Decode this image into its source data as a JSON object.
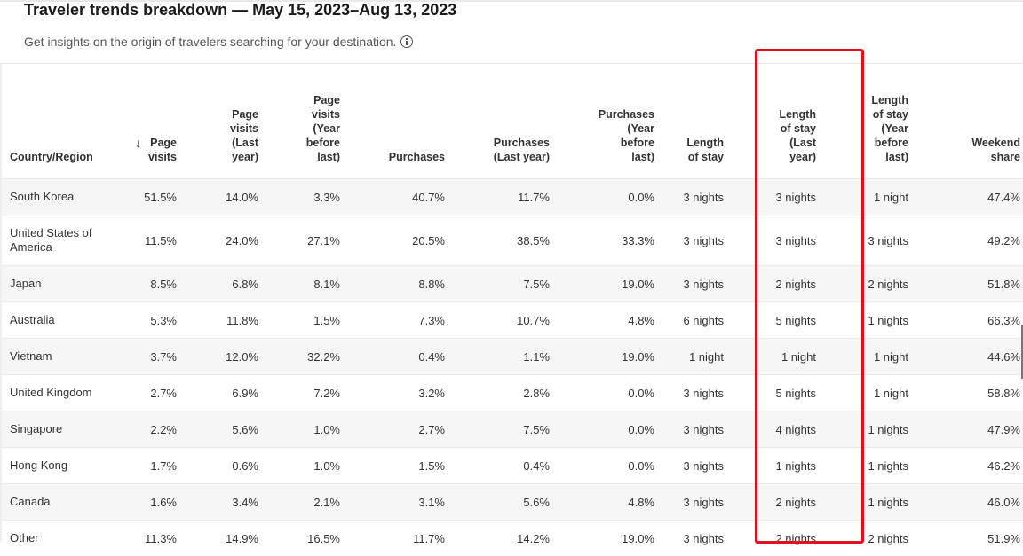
{
  "title": "Traveler trends breakdown — May 15, 2023–Aug 13, 2023",
  "subtitle": "Get insights on the origin of travelers searching for your destination.",
  "icons": {
    "info": "info-icon",
    "sort": "arrow-down-icon"
  },
  "colors": {
    "highlight": "#e01020",
    "row_shade": "#f6f6f6"
  },
  "table": {
    "headers": {
      "country": "Country/Region",
      "page_visits": "Page visits",
      "page_visits_last": "Page visits (Last year)",
      "page_visits_ybl": "Page visits (Year before last)",
      "purchases": "Purchases",
      "purchases_last": "Purchases (Last year)",
      "purchases_ybl": "Purchases (Year before last)",
      "stay": "Length of stay",
      "stay_last": "Length of stay (Last year)",
      "stay_ybl": "Length of stay (Year before last)",
      "weekend": "Weekend share"
    },
    "sort_column": "Page visits",
    "highlighted_column": "Length of stay (Last year)",
    "rows": [
      {
        "country": "South Korea",
        "page_visits": "51.5%",
        "page_visits_last": "14.0%",
        "page_visits_ybl": "3.3%",
        "purchases": "40.7%",
        "purchases_last": "11.7%",
        "purchases_ybl": "0.0%",
        "stay": "3 nights",
        "stay_last": "3 nights",
        "stay_ybl": "1 night",
        "weekend": "47.4%"
      },
      {
        "country": "United States of America",
        "page_visits": "11.5%",
        "page_visits_last": "24.0%",
        "page_visits_ybl": "27.1%",
        "purchases": "20.5%",
        "purchases_last": "38.5%",
        "purchases_ybl": "33.3%",
        "stay": "3 nights",
        "stay_last": "3 nights",
        "stay_ybl": "3 nights",
        "weekend": "49.2%"
      },
      {
        "country": "Japan",
        "page_visits": "8.5%",
        "page_visits_last": "6.8%",
        "page_visits_ybl": "8.1%",
        "purchases": "8.8%",
        "purchases_last": "7.5%",
        "purchases_ybl": "19.0%",
        "stay": "3 nights",
        "stay_last": "2 nights",
        "stay_ybl": "2 nights",
        "weekend": "51.8%"
      },
      {
        "country": "Australia",
        "page_visits": "5.3%",
        "page_visits_last": "11.8%",
        "page_visits_ybl": "1.5%",
        "purchases": "7.3%",
        "purchases_last": "10.7%",
        "purchases_ybl": "4.8%",
        "stay": "6 nights",
        "stay_last": "5 nights",
        "stay_ybl": "1 nights",
        "weekend": "66.3%"
      },
      {
        "country": "Vietnam",
        "page_visits": "3.7%",
        "page_visits_last": "12.0%",
        "page_visits_ybl": "32.2%",
        "purchases": "0.4%",
        "purchases_last": "1.1%",
        "purchases_ybl": "19.0%",
        "stay": "1 night",
        "stay_last": "1 night",
        "stay_ybl": "1 night",
        "weekend": "44.6%"
      },
      {
        "country": "United Kingdom",
        "page_visits": "2.7%",
        "page_visits_last": "6.9%",
        "page_visits_ybl": "7.2%",
        "purchases": "3.2%",
        "purchases_last": "2.8%",
        "purchases_ybl": "0.0%",
        "stay": "3 nights",
        "stay_last": "5 nights",
        "stay_ybl": "1 night",
        "weekend": "58.8%"
      },
      {
        "country": "Singapore",
        "page_visits": "2.2%",
        "page_visits_last": "5.6%",
        "page_visits_ybl": "1.0%",
        "purchases": "2.7%",
        "purchases_last": "7.5%",
        "purchases_ybl": "0.0%",
        "stay": "3 nights",
        "stay_last": "4 nights",
        "stay_ybl": "1 nights",
        "weekend": "47.9%"
      },
      {
        "country": "Hong Kong",
        "page_visits": "1.7%",
        "page_visits_last": "0.6%",
        "page_visits_ybl": "1.0%",
        "purchases": "1.5%",
        "purchases_last": "0.4%",
        "purchases_ybl": "0.0%",
        "stay": "3 nights",
        "stay_last": "1 nights",
        "stay_ybl": "1 nights",
        "weekend": "46.2%"
      },
      {
        "country": "Canada",
        "page_visits": "1.6%",
        "page_visits_last": "3.4%",
        "page_visits_ybl": "2.1%",
        "purchases": "3.1%",
        "purchases_last": "5.6%",
        "purchases_ybl": "4.8%",
        "stay": "3 nights",
        "stay_last": "2 nights",
        "stay_ybl": "1 nights",
        "weekend": "46.0%"
      },
      {
        "country": "Other",
        "page_visits": "11.3%",
        "page_visits_last": "14.9%",
        "page_visits_ybl": "16.5%",
        "purchases": "11.7%",
        "purchases_last": "14.2%",
        "purchases_ybl": "19.0%",
        "stay": "3 nights",
        "stay_last": "2 nights",
        "stay_ybl": "2 nights",
        "weekend": "51.9%"
      }
    ]
  }
}
